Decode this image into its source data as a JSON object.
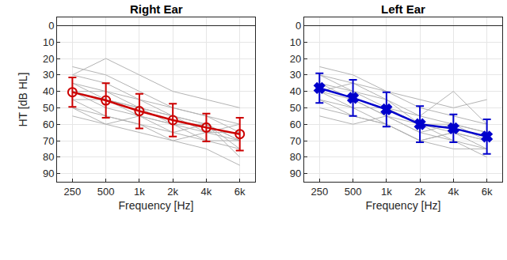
{
  "chart_data": [
    {
      "type": "line",
      "title": "Right Ear",
      "x_label": "Frequency [Hz]",
      "y_label": "HT [dB HL]",
      "categories": [
        "250",
        "500",
        "1k",
        "2k",
        "4k",
        "6k"
      ],
      "ylim": [
        95,
        -5
      ],
      "yticks": [
        0,
        10,
        20,
        30,
        40,
        50,
        60,
        70,
        80,
        90
      ],
      "grid": true,
      "series": [
        {
          "color": "#b3b3b3",
          "values": [
            25,
            30,
            40,
            50,
            55,
            60
          ]
        },
        {
          "color": "#b3b3b3",
          "values": [
            30,
            20,
            30,
            40,
            45,
            50
          ]
        },
        {
          "color": "#b3b3b3",
          "values": [
            35,
            40,
            45,
            55,
            60,
            70
          ]
        },
        {
          "color": "#b3b3b3",
          "values": [
            40,
            45,
            55,
            60,
            65,
            70
          ]
        },
        {
          "color": "#b3b3b3",
          "values": [
            45,
            55,
            60,
            65,
            70,
            75
          ]
        },
        {
          "color": "#b3b3b3",
          "values": [
            50,
            55,
            60,
            70,
            75,
            85
          ]
        },
        {
          "color": "#b3b3b3",
          "values": [
            55,
            60,
            65,
            70,
            65,
            65
          ]
        },
        {
          "color": "#b3b3b3",
          "values": [
            35,
            45,
            50,
            55,
            60,
            75
          ]
        },
        {
          "color": "#b3b3b3",
          "values": [
            40,
            50,
            55,
            60,
            70,
            70
          ]
        },
        {
          "color": "#b3b3b3",
          "values": [
            45,
            45,
            50,
            55,
            65,
            60
          ]
        },
        {
          "color": "#b3b3b3",
          "values": [
            50,
            60,
            55,
            65,
            60,
            80
          ]
        },
        {
          "color": "#b3b3b3",
          "values": [
            30,
            35,
            45,
            50,
            55,
            65
          ]
        },
        {
          "color": "#b3b3b3",
          "values": [
            40,
            40,
            50,
            60,
            60,
            70
          ]
        },
        {
          "color": "#cc0000",
          "marker": "circle-open",
          "values": [
            40.5,
            45.5,
            52,
            57.5,
            62,
            66
          ],
          "errors": [
            9,
            10.5,
            10.5,
            10,
            8.5,
            10
          ]
        }
      ]
    },
    {
      "type": "line",
      "title": "Left Ear",
      "x_label": "Frequency [Hz]",
      "categories": [
        "250",
        "500",
        "1k",
        "2k",
        "4k",
        "6k"
      ],
      "ylim": [
        95,
        -5
      ],
      "yticks": [
        0,
        10,
        20,
        30,
        40,
        50,
        60,
        70,
        80,
        90
      ],
      "grid": true,
      "series": [
        {
          "color": "#b3b3b3",
          "values": [
            30,
            35,
            40,
            45,
            50,
            45
          ]
        },
        {
          "color": "#b3b3b3",
          "values": [
            40,
            45,
            55,
            60,
            65,
            70
          ]
        },
        {
          "color": "#b3b3b3",
          "values": [
            45,
            55,
            60,
            70,
            75,
            75
          ]
        },
        {
          "color": "#b3b3b3",
          "values": [
            35,
            40,
            45,
            55,
            60,
            65
          ]
        },
        {
          "color": "#b3b3b3",
          "values": [
            50,
            55,
            60,
            70,
            65,
            75
          ]
        },
        {
          "color": "#b3b3b3",
          "values": [
            25,
            30,
            40,
            50,
            55,
            60
          ]
        },
        {
          "color": "#b3b3b3",
          "values": [
            40,
            50,
            50,
            60,
            70,
            80
          ]
        },
        {
          "color": "#b3b3b3",
          "values": [
            35,
            45,
            55,
            65,
            60,
            70
          ]
        },
        {
          "color": "#b3b3b3",
          "values": [
            45,
            50,
            60,
            70,
            65,
            70
          ]
        },
        {
          "color": "#b3b3b3",
          "values": [
            30,
            40,
            50,
            55,
            40,
            60
          ]
        },
        {
          "color": "#b3b3b3",
          "values": [
            55,
            60,
            55,
            65,
            70,
            75
          ]
        },
        {
          "color": "#b3b3b3",
          "values": [
            40,
            35,
            45,
            60,
            60,
            65
          ]
        },
        {
          "color": "#0000cc",
          "marker": "x",
          "values": [
            38,
            44,
            51,
            60,
            62.5,
            67.5
          ],
          "errors": [
            9,
            11,
            10.5,
            11,
            8.5,
            10.5
          ]
        }
      ]
    }
  ]
}
